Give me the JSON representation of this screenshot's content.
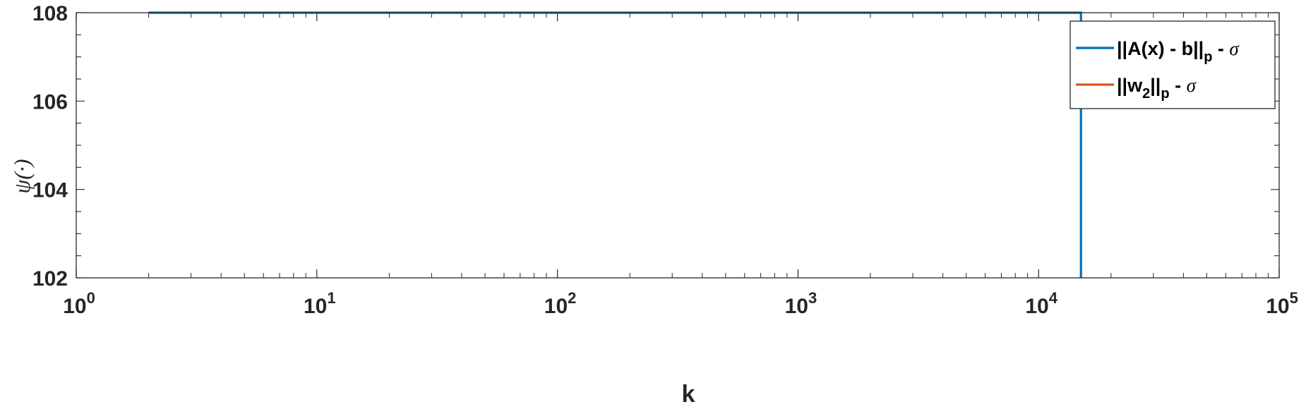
{
  "chart_data": {
    "type": "line",
    "xlabel": "k",
    "ylabel": "ψ(·)",
    "xscale": "log",
    "xlim": [
      1,
      100000
    ],
    "ylim": [
      102,
      108
    ],
    "y_ticks": [
      "102",
      "104",
      "106",
      "108"
    ],
    "x_ticks": [
      {
        "base": "10",
        "exp": "0"
      },
      {
        "base": "10",
        "exp": "1"
      },
      {
        "base": "10",
        "exp": "2"
      },
      {
        "base": "10",
        "exp": "3"
      },
      {
        "base": "10",
        "exp": "4"
      },
      {
        "base": "10",
        "exp": "5"
      }
    ],
    "grid": false,
    "legend_position": "top-right",
    "series": [
      {
        "legend_parts": [
          "||A(x) - b||",
          "p",
          " - ",
          "σ"
        ],
        "color": "#0072BD",
        "points": [
          [
            2,
            108
          ],
          [
            15000,
            108
          ],
          [
            15000,
            102
          ]
        ]
      },
      {
        "legend_parts": [
          "||w",
          "2",
          "||",
          "p",
          " - ",
          "σ"
        ],
        "color": "#D95319",
        "points": []
      }
    ]
  }
}
